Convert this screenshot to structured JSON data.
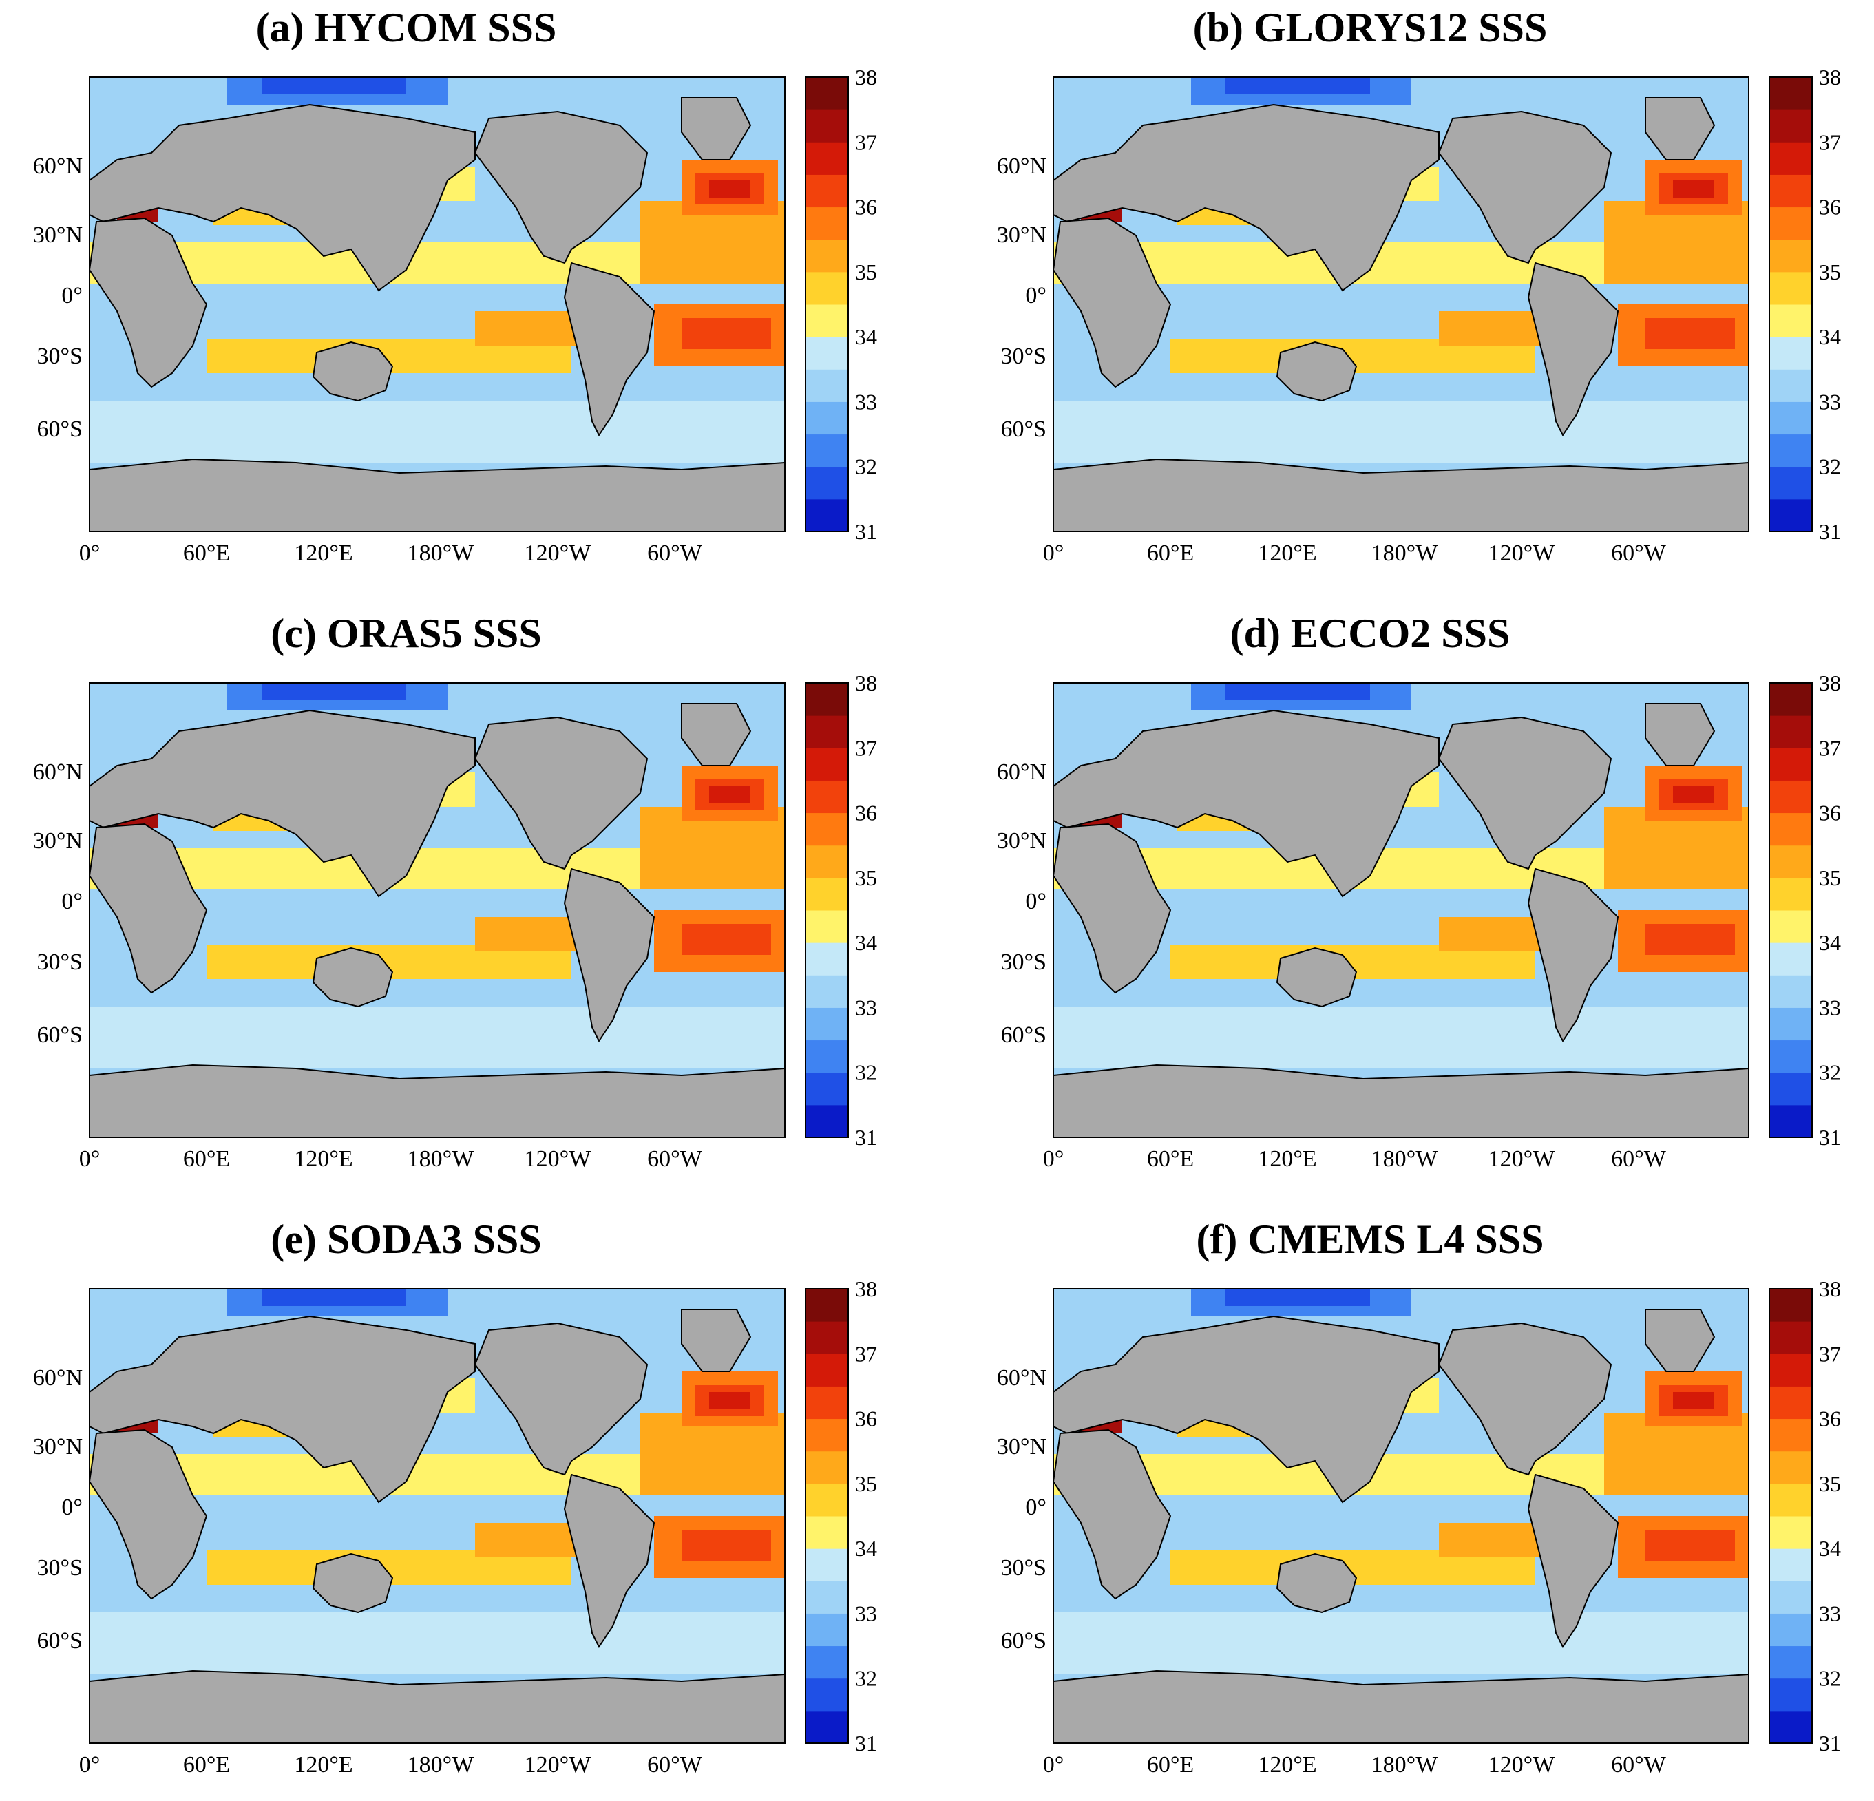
{
  "colormap": {
    "ticks": [
      "38",
      "37",
      "36",
      "35",
      "34",
      "33",
      "32",
      "31"
    ],
    "levels": [
      "#0a1bc8",
      "#1f50e6",
      "#3f83f2",
      "#6fb2f5",
      "#9fd3f6",
      "#c4e8f8",
      "#fff36a",
      "#ffd22c",
      "#ffa91a",
      "#ff7a10",
      "#f2420c",
      "#d41a08",
      "#a50d0a",
      "#7a0b08"
    ],
    "land": "#a9a9a9",
    "nodata": "#ffffff"
  },
  "lat_labels": [
    "60°N",
    "30°N",
    "0°",
    "30°S",
    "60°S"
  ],
  "lon_labels": [
    "0°",
    "60°E",
    "120°E",
    "180°W",
    "120°W",
    "60°W"
  ],
  "panels": [
    {
      "title": "(a) HYCOM SSS"
    },
    {
      "title": "(b) GLORYS12 SSS"
    },
    {
      "title": "(c) ORAS5 SSS"
    },
    {
      "title": "(d) ECCO2 SSS"
    },
    {
      "title": "(e) SODA3 SSS"
    },
    {
      "title": "(f) CMEMS L4 SSS"
    }
  ]
}
